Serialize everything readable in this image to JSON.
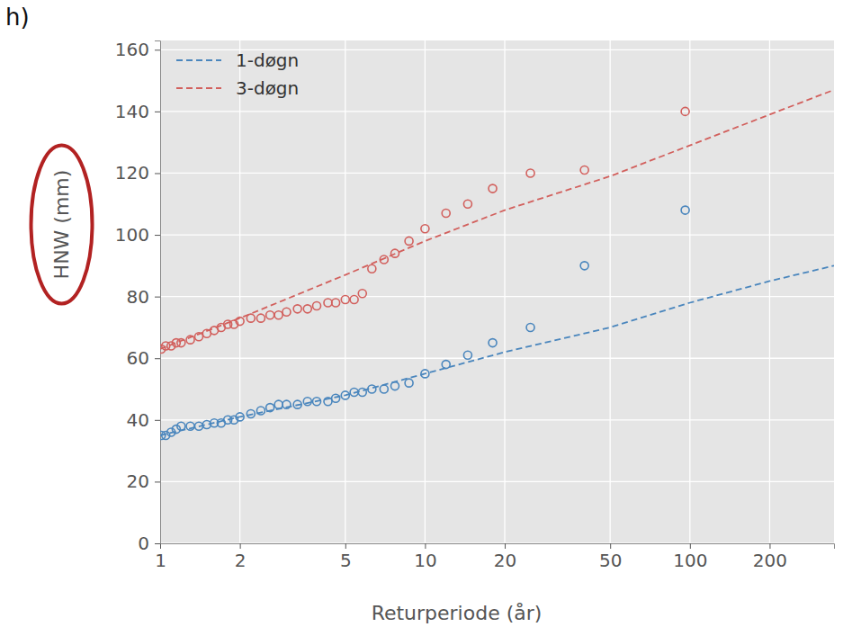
{
  "chart_data": {
    "type": "line",
    "title": "h)",
    "xlabel": "Returperiode (år)",
    "ylabel": "HNW (mm)",
    "log": "x",
    "grid": true,
    "legend": "upper left",
    "xlim": [
      1,
      350
    ],
    "ylim": [
      0,
      163
    ],
    "xticks": [
      1,
      2,
      5,
      10,
      20,
      50,
      100,
      200
    ],
    "yticks": [
      0,
      20,
      40,
      60,
      80,
      100,
      120,
      140,
      160
    ],
    "series": [
      {
        "name": "1-døgn",
        "type": "line",
        "line_style": "dashed",
        "color": "#4a86bd",
        "x": [
          1,
          2,
          5,
          10,
          20,
          50,
          100,
          200,
          350
        ],
        "values": [
          35,
          41,
          48,
          55,
          62,
          70,
          78,
          85,
          90
        ]
      },
      {
        "name": "3-døgn",
        "type": "line",
        "line_style": "dashed",
        "color": "#d2605d",
        "x": [
          1,
          2,
          5,
          10,
          20,
          50,
          100,
          200,
          350
        ],
        "values": [
          63,
          73,
          87,
          98,
          108,
          119,
          129,
          139,
          147
        ]
      },
      {
        "type": "scatter",
        "marker": "circle",
        "color": "#4a86bd",
        "x": [
          1.01,
          1.05,
          1.1,
          1.15,
          1.2,
          1.3,
          1.4,
          1.5,
          1.6,
          1.7,
          1.8,
          1.9,
          2.0,
          2.2,
          2.4,
          2.6,
          2.8,
          3.0,
          3.3,
          3.6,
          3.9,
          4.3,
          4.6,
          5.0,
          5.4,
          5.8,
          6.3,
          7.0,
          7.7,
          8.7,
          10,
          12,
          14.5,
          18,
          25,
          40,
          96
        ],
        "values": [
          35,
          35,
          36,
          37,
          38,
          38,
          38,
          38.5,
          39,
          39,
          40,
          40,
          41,
          42,
          43,
          44,
          45,
          45,
          45,
          46,
          46,
          46,
          47,
          48,
          49,
          49,
          50,
          50,
          51,
          52,
          55,
          58,
          61,
          65,
          70,
          90,
          108
        ]
      },
      {
        "type": "scatter",
        "marker": "circle",
        "color": "#d2605d",
        "x": [
          1.01,
          1.05,
          1.1,
          1.15,
          1.2,
          1.3,
          1.4,
          1.5,
          1.6,
          1.7,
          1.8,
          1.9,
          2.0,
          2.2,
          2.4,
          2.6,
          2.8,
          3.0,
          3.3,
          3.6,
          3.9,
          4.3,
          4.6,
          5.0,
          5.4,
          5.8,
          6.3,
          7.0,
          7.7,
          8.7,
          10,
          12,
          14.5,
          18,
          25,
          40,
          96
        ],
        "values": [
          63,
          64,
          64,
          65,
          65,
          66,
          67,
          68,
          69,
          70,
          71,
          71,
          72,
          73,
          73,
          74,
          74,
          75,
          76,
          76,
          77,
          78,
          78,
          79,
          79,
          81,
          89,
          92,
          94,
          98,
          102,
          107,
          110,
          115,
          120,
          121,
          140
        ]
      }
    ]
  }
}
